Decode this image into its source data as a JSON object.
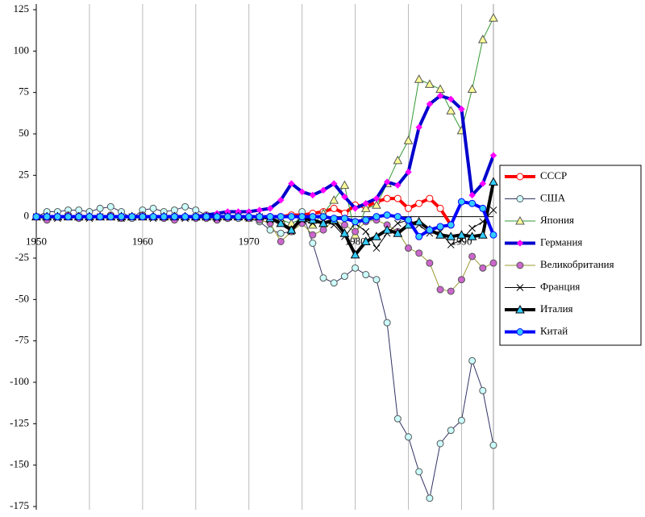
{
  "chart_data": {
    "type": "line",
    "x": [
      1950,
      1951,
      1952,
      1953,
      1954,
      1955,
      1956,
      1957,
      1958,
      1959,
      1960,
      1961,
      1962,
      1963,
      1964,
      1965,
      1966,
      1967,
      1968,
      1969,
      1970,
      1971,
      1972,
      1973,
      1974,
      1975,
      1976,
      1977,
      1978,
      1979,
      1980,
      1981,
      1982,
      1983,
      1984,
      1985,
      1986,
      1987,
      1988,
      1989,
      1990,
      1991,
      1992,
      1993
    ],
    "xlim": [
      1950,
      1993
    ],
    "xticks": [
      1950,
      1960,
      1970,
      1980,
      1990
    ],
    "x_minor_ticks": [
      1955,
      1965,
      1975,
      1985
    ],
    "ylim": [
      -175,
      125
    ],
    "yticks": [
      -175,
      -150,
      -125,
      -100,
      -75,
      -50,
      -25,
      0,
      25,
      50,
      75,
      100,
      125
    ],
    "grid": true,
    "legend": "right",
    "series": [
      {
        "name": "СССР",
        "color": "#ff0000",
        "line_width": 4,
        "marker": "circle",
        "marker_fill": "#ffffff",
        "values": [
          null,
          null,
          null,
          null,
          null,
          null,
          null,
          null,
          null,
          null,
          null,
          null,
          null,
          null,
          null,
          null,
          null,
          null,
          null,
          null,
          null,
          null,
          0,
          0,
          1,
          1,
          2,
          3,
          5,
          2,
          7,
          6,
          9,
          11,
          11,
          5,
          8,
          11,
          5,
          -5,
          null,
          null,
          null,
          null
        ]
      },
      {
        "name": "США",
        "color": "#333366",
        "line_width": 1,
        "marker": "circle",
        "marker_fill": "#ccffff",
        "values": [
          0,
          3,
          3,
          4,
          4,
          3,
          5,
          6,
          3,
          -1,
          4,
          5,
          3,
          4,
          6,
          4,
          1,
          1,
          -1,
          -1,
          -1,
          -3,
          -8,
          -10,
          -9,
          3,
          -16,
          -37,
          -40,
          -36,
          -31,
          -35,
          -38,
          -64,
          -122,
          -133,
          -154,
          -170,
          -137,
          -129,
          -123,
          -87,
          -105,
          -138
        ]
      },
      {
        "name": "Япония",
        "color": "#339933",
        "line_width": 1,
        "marker": "triangle",
        "marker_fill": "#ffff99",
        "values": [
          0,
          0,
          0,
          0,
          0,
          0,
          0,
          0,
          0,
          0,
          0,
          0,
          0,
          0,
          0,
          0,
          0,
          0,
          0,
          0,
          0,
          0,
          -1,
          -2,
          -4,
          -1,
          -5,
          2,
          10,
          19,
          -11,
          5,
          7,
          20,
          34,
          46,
          83,
          80,
          77,
          64,
          52,
          77,
          107,
          120
        ]
      },
      {
        "name": "Германия",
        "color": "#0000cc",
        "line_width": 4,
        "marker": "diamond",
        "marker_fill": "#ff00ff",
        "values": [
          0,
          0,
          0,
          0,
          0,
          0,
          0,
          0,
          0,
          0,
          0,
          0,
          0,
          0,
          0,
          0,
          1,
          2,
          3,
          3,
          3,
          4,
          5,
          10,
          20,
          15,
          13,
          16,
          20,
          12,
          5,
          8,
          11,
          21,
          19,
          27,
          54,
          68,
          73,
          71,
          65,
          13,
          20,
          37
        ]
      },
      {
        "name": "Великобритания",
        "color": "#999933",
        "line_width": 1,
        "marker": "circle",
        "marker_fill": "#cc66cc",
        "values": [
          0,
          -2,
          0,
          1,
          -1,
          0,
          0,
          1,
          -1,
          0,
          1,
          0,
          -1,
          -2,
          0,
          -1,
          -1,
          -2,
          -1,
          0,
          -1,
          -2,
          -4,
          -15,
          -9,
          -4,
          -11,
          -8,
          -2,
          -5,
          -9,
          -3,
          -2,
          -5,
          -9,
          -19,
          -22,
          -28,
          -44,
          -45,
          -38,
          -24,
          -31,
          -28
        ]
      },
      {
        "name": "Франция",
        "color": "#000000",
        "line_width": 1,
        "marker": "x",
        "marker_fill": "#000000",
        "values": [
          0,
          0,
          -1,
          0,
          0,
          -1,
          0,
          0,
          -1,
          0,
          0,
          -1,
          0,
          0,
          -1,
          0,
          0,
          -1,
          0,
          0,
          -1,
          0,
          -2,
          -4,
          -9,
          -2,
          -4,
          -3,
          -5,
          -12,
          -4,
          -9,
          -19,
          -10,
          -4,
          -2,
          -5,
          -10,
          -9,
          -17,
          -14,
          -7,
          -3,
          4
        ]
      },
      {
        "name": "Италия",
        "color": "#000000",
        "line_width": 4,
        "marker": "triangle",
        "marker_fill": "#33ccff",
        "values": [
          0,
          0,
          0,
          0,
          0,
          0,
          0,
          0,
          0,
          0,
          0,
          0,
          0,
          0,
          0,
          0,
          0,
          0,
          0,
          0,
          0,
          0,
          -1,
          -4,
          -8,
          -1,
          -2,
          -4,
          -2,
          -10,
          -23,
          -15,
          -12,
          -8,
          -10,
          -5,
          -3,
          -8,
          -11,
          -12,
          -11,
          -12,
          -11,
          21
        ]
      },
      {
        "name": "Китай",
        "color": "#0000ff",
        "line_width": 4,
        "marker": "circle",
        "marker_fill": "#33ccff",
        "values": [
          0,
          0,
          0,
          0,
          0,
          0,
          0,
          0,
          0,
          0,
          0,
          0,
          0,
          0,
          0,
          0,
          0,
          0,
          0,
          0,
          0,
          0,
          0,
          0,
          0,
          0,
          0,
          0,
          -1,
          -1,
          -3,
          -2,
          0,
          1,
          0,
          -2,
          -12,
          -8,
          -6,
          -5,
          9,
          8,
          5,
          -11
        ]
      }
    ]
  }
}
